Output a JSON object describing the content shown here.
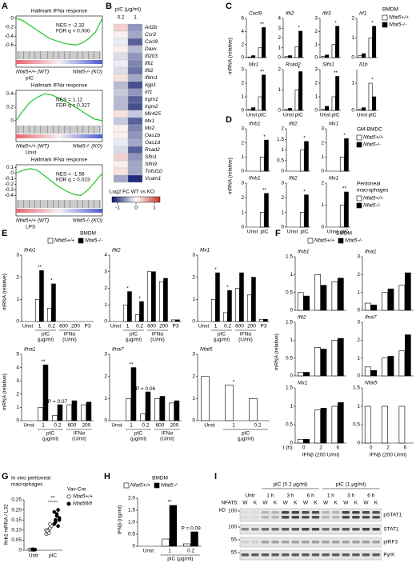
{
  "panel_labels": [
    "A",
    "B",
    "C",
    "D",
    "E",
    "F",
    "G",
    "H",
    "I"
  ],
  "A": {
    "plots": [
      {
        "title": "Hallmark IFNα response",
        "nes": "NES = -2.32",
        "fdr": "FDR q < 0.000",
        "ylim": [
          -0.7,
          0.05
        ],
        "yticks": [
          0,
          -0.2,
          -0.4,
          -0.6
        ],
        "es": [
          0,
          -0.05,
          -0.15,
          -0.25,
          -0.35,
          -0.45,
          -0.5,
          -0.55,
          -0.58,
          -0.6,
          -0.55,
          -0.45,
          -0.3,
          0
        ],
        "left": "Nfat5+/+ (WT)",
        "right": "Nfat5-/- (KO)",
        "condition": "pIC"
      },
      {
        "title": "Hallmark IFNα response",
        "nes": "NES = 1.12",
        "fdr": "FDR q = 0.327",
        "ylim": [
          -0.05,
          0.45
        ],
        "yticks": [
          0,
          0.2,
          0.4
        ],
        "es": [
          0,
          0.15,
          0.28,
          0.35,
          0.4,
          0.38,
          0.33,
          0.28,
          0.22,
          0.15,
          0.08,
          0.02,
          0
        ],
        "left": "Nfat5+/+ (WT)",
        "right": "Nfat5-/- (KO)",
        "condition": "Unst"
      },
      {
        "title": "Hallmark IFNα response",
        "nes": "NES = -1.58",
        "fdr": "FDR q = 0.023",
        "ylim": [
          -0.45,
          0.15
        ],
        "yticks": [
          0.1,
          0,
          -0.1,
          -0.2,
          -0.3,
          -0.4
        ],
        "es": [
          0,
          0.05,
          0.08,
          0.05,
          -0.05,
          -0.15,
          -0.25,
          -0.32,
          -0.38,
          -0.4,
          -0.3,
          -0.15,
          0
        ],
        "left": "Nfat5+/+ (WT)",
        "right": "Nfat5-/- (KO)",
        "condition": "LPS"
      }
    ]
  },
  "B": {
    "header": "pIC (μg/ml)",
    "columns": [
      "0.2",
      "1"
    ],
    "genes": [
      "Art2b",
      "Ccr3",
      "Cxcl9",
      "Daxx",
      "Ifi203",
      "Ifit1",
      "Ifit2",
      "Ifitm1",
      "Iigp1",
      "Irf1",
      "Irgm1",
      "Irgm2",
      "Mir425",
      "Mx1",
      "Mx2",
      "Oas1b",
      "Oas1d",
      "Rsad2",
      "Slfn1",
      "Slfn9",
      "Tnfsf10",
      "Vcam1"
    ],
    "values": [
      [
        0.3,
        -0.6
      ],
      [
        0.1,
        -0.5
      ],
      [
        -0.1,
        -0.9
      ],
      [
        0.1,
        -0.4
      ],
      [
        -0.2,
        -0.6
      ],
      [
        -0.1,
        -0.7
      ],
      [
        -0.2,
        -0.8
      ],
      [
        0.2,
        -0.5
      ],
      [
        -0.4,
        -1
      ],
      [
        -0.3,
        -0.6
      ],
      [
        -0.4,
        -0.9
      ],
      [
        -0.4,
        -1
      ],
      [
        0.2,
        -0.3
      ],
      [
        -0.3,
        -0.9
      ],
      [
        0.1,
        -0.7
      ],
      [
        0.1,
        -0.6
      ],
      [
        -0.1,
        -0.5
      ],
      [
        -0.2,
        -0.9
      ],
      [
        0.3,
        -0.6
      ],
      [
        0.1,
        -0.5
      ],
      [
        0.2,
        -0.5
      ],
      [
        -0.5,
        -1.2
      ]
    ],
    "colorbar_label": "Log2 FC WT vs KO",
    "clim": [
      -1.3,
      1.3
    ],
    "cticks": [
      -1,
      0,
      1
    ]
  },
  "C": {
    "title": "BMDM",
    "legend": [
      "Nfat5+/+",
      "Nfat5-/-"
    ],
    "ylabel": "mRNA (relative)",
    "categories": [
      "Unst",
      "pIC"
    ],
    "charts": [
      {
        "gene": "Cxcl9",
        "ylim": [
          0,
          6
        ],
        "yticks": [
          0,
          2,
          4,
          6
        ],
        "wt": [
          0.1,
          1.5
        ],
        "ko": [
          0.3,
          4.6
        ],
        "sig": [
          null,
          "**"
        ]
      },
      {
        "gene": "Ifit2",
        "ylim": [
          0,
          4
        ],
        "yticks": [
          0,
          1,
          2,
          3,
          4
        ],
        "wt": [
          0.1,
          1.1
        ],
        "ko": [
          0.2,
          2.7
        ],
        "sig": [
          null,
          "*"
        ]
      },
      {
        "gene": "Ifit3",
        "ylim": [
          0,
          3
        ],
        "yticks": [
          0,
          1,
          2,
          3
        ],
        "wt": [
          0.1,
          1
        ],
        "ko": [
          0.2,
          2.4
        ],
        "sig": [
          null,
          "*"
        ]
      },
      {
        "gene": "Irf1",
        "ylim": [
          0,
          2
        ],
        "yticks": [
          0,
          1,
          2
        ],
        "wt": [
          0.1,
          1
        ],
        "ko": [
          0.2,
          1.6
        ],
        "sig": [
          null,
          "*"
        ]
      },
      {
        "gene": "Mx1",
        "ylim": [
          0,
          3
        ],
        "yticks": [
          0,
          1,
          2,
          3
        ],
        "wt": [
          0.1,
          1
        ],
        "ko": [
          0.2,
          2.6
        ],
        "sig": [
          null,
          "**"
        ]
      },
      {
        "gene": "Rsad2",
        "ylim": [
          0,
          2
        ],
        "yticks": [
          0,
          1,
          2
        ],
        "wt": [
          0.05,
          1
        ],
        "ko": [
          0.1,
          1.9
        ],
        "sig": [
          null,
          "*"
        ]
      },
      {
        "gene": "Slfn1",
        "ylim": [
          0,
          3
        ],
        "yticks": [
          0,
          1,
          2,
          3
        ],
        "wt": [
          0.1,
          1
        ],
        "ko": [
          0.3,
          2.5
        ],
        "sig": [
          null,
          "**"
        ]
      },
      {
        "gene": "Il1b",
        "ylim": [
          0,
          1.5
        ],
        "yticks": [
          0,
          1
        ],
        "wt": [
          0.05,
          1
        ],
        "ko": [
          0.1,
          0.5
        ],
        "sig": [
          null,
          "*"
        ]
      }
    ]
  },
  "D": {
    "ylabel": "mRNA (relative)",
    "categories": [
      "Unst",
      "pIC"
    ],
    "groups": [
      {
        "title": [
          "GM-BMDC"
        ],
        "legend": [
          "Nfat5+/+",
          "Nfat5-/-"
        ],
        "charts": [
          {
            "gene": "Ifnb1",
            "ylim": [
              0,
              3
            ],
            "yticks": [
              0,
              1,
              2,
              3
            ],
            "wt": [
              0,
              1
            ],
            "ko": [
              0,
              2.2
            ],
            "sig": [
              null,
              "*"
            ]
          },
          {
            "gene": "Ifit2",
            "ylim": [
              0,
              2
            ],
            "yticks": [
              0,
              0.5,
              1,
              1.5,
              2
            ],
            "wt": [
              0,
              1
            ],
            "ko": [
              0,
              1.4
            ],
            "sig": [
              null,
              "*"
            ]
          },
          {
            "gene": "Mx1",
            "ylim": [
              0,
              3
            ],
            "yticks": [
              0,
              1,
              2,
              3
            ],
            "wt": [
              0,
              1
            ],
            "ko": [
              0,
              2.3
            ],
            "sig": [
              null,
              "*"
            ]
          }
        ]
      },
      {
        "title": [
          "Peritoneal",
          "macrophages"
        ],
        "legend": [
          "Nfat5+/+",
          "Nfat5-/-"
        ],
        "charts": [
          {
            "gene": "Ifnb1",
            "ylim": [
              0,
              3
            ],
            "yticks": [
              0,
              1,
              2,
              3
            ],
            "wt": [
              0,
              1
            ],
            "ko": [
              0,
              2.3
            ],
            "sig": [
              null,
              "**"
            ]
          },
          {
            "gene": "Ifit2",
            "ylim": [
              0,
              3
            ],
            "yticks": [
              0,
              1,
              2,
              3
            ],
            "wt": [
              0,
              1
            ],
            "ko": [
              0,
              2.2
            ],
            "sig": [
              null,
              "*"
            ]
          },
          {
            "gene": "Mx1",
            "ylim": [
              0,
              2
            ],
            "yticks": [
              0,
              1,
              2
            ],
            "wt": [
              0,
              1
            ],
            "ko": [
              0,
              1.6
            ],
            "sig": [
              null,
              "**"
            ]
          }
        ]
      }
    ]
  },
  "E": {
    "title": "BMDM",
    "legend": [
      "Nfat5+/+",
      "Nfat5-/-"
    ],
    "ylabel": "mRNA (relative)",
    "categories": [
      "Unst",
      "1",
      "0.2",
      "600",
      "200",
      "P3"
    ],
    "groups": [
      [
        "pIC",
        "(μg/ml)"
      ],
      [
        "IFNα",
        "(U/ml)"
      ]
    ],
    "charts": [
      {
        "gene": "Ifnb1",
        "ylim": [
          0,
          3
        ],
        "yticks": [
          0,
          1,
          2,
          3
        ],
        "wt": [
          0,
          1,
          0.6,
          0,
          0,
          0
        ],
        "ko": [
          0,
          2.3,
          1.7,
          0,
          0,
          0
        ],
        "sig": [
          null,
          "**",
          "*"
        ]
      },
      {
        "gene": "Ifit2",
        "ylim": [
          0,
          4
        ],
        "yticks": [
          0,
          1,
          2,
          3,
          4
        ],
        "wt": [
          0,
          1,
          0.4,
          3,
          2.4,
          0.1
        ],
        "ko": [
          0,
          1.8,
          1.2,
          3,
          2.6,
          0.1
        ],
        "sig": [
          null,
          "*",
          "*"
        ]
      },
      {
        "gene": "Mx1",
        "ylim": [
          0,
          3
        ],
        "yticks": [
          0,
          1,
          2,
          3
        ],
        "wt": [
          0,
          1,
          0.4,
          1.5,
          1.2,
          0.1
        ],
        "ko": [
          0,
          2.2,
          1.4,
          2.2,
          2,
          0.1
        ],
        "sig": [
          null,
          "*",
          "*"
        ]
      },
      {
        "gene": "Ifna1",
        "ylim": [
          0,
          5
        ],
        "yticks": [
          0,
          1,
          2,
          3,
          4,
          5
        ],
        "wt": [
          0,
          1,
          0.4,
          1.2,
          1.2
        ],
        "ko": [
          0,
          4.2,
          1.2,
          1.5,
          1.4
        ],
        "sig": [
          null,
          "**",
          "P = 0.07"
        ]
      },
      {
        "gene": "Ifna7",
        "ylim": [
          0,
          3
        ],
        "yticks": [
          0,
          1,
          2,
          3
        ],
        "wt": [
          0,
          1,
          0.3,
          1,
          0.8
        ],
        "ko": [
          0,
          2.4,
          1.3,
          1.1,
          0.9
        ],
        "sig": [
          null,
          "**",
          "P = 0.06"
        ]
      },
      {
        "gene": "Nfat5",
        "ylim": [
          0,
          3
        ],
        "yticks": [
          0,
          1,
          2,
          3
        ],
        "wt": [
          2,
          1.6,
          1
        ],
        "ko": [
          0,
          0,
          0
        ],
        "sig": [
          null,
          "*"
        ]
      }
    ]
  },
  "F": {
    "title": "BMDM",
    "legend": [
      "Nfat5+/+",
      "Nfat5-/-"
    ],
    "ylabel": "mRNA (relative)",
    "categories": [
      "0",
      "2",
      "6"
    ],
    "x_prefix": "t (h):",
    "treatment": "IFNβ (200 U/ml)",
    "charts": [
      {
        "gene": "Ifnb1",
        "ylim": [
          0,
          1.5
        ],
        "yticks": [
          0,
          0.5,
          1,
          1.5
        ],
        "wt": [
          0.5,
          1,
          0.8
        ],
        "ko": [
          0.4,
          0.7,
          0.9
        ]
      },
      {
        "gene": "Ifna1",
        "ylim": [
          0,
          3
        ],
        "yticks": [
          0,
          1,
          2,
          3
        ],
        "wt": [
          0.4,
          1,
          1.4
        ],
        "ko": [
          0.3,
          1.2,
          2.1
        ]
      },
      {
        "gene": "Ifit2",
        "ylim": [
          0,
          1.5
        ],
        "yticks": [
          0,
          0.5,
          1,
          1.5
        ],
        "wt": [
          0.1,
          0.8,
          1
        ],
        "ko": [
          0.1,
          0.75,
          1.05
        ]
      },
      {
        "gene": "Ifna7",
        "ylim": [
          0,
          3
        ],
        "yticks": [
          0,
          1,
          2,
          3
        ],
        "wt": [
          0.5,
          1,
          1.4
        ],
        "ko": [
          0.3,
          1.1,
          2.3
        ]
      },
      {
        "gene": "Mx1",
        "ylim": [
          0,
          1.5
        ],
        "yticks": [
          0,
          0.5,
          1,
          1.5
        ],
        "wt": [
          0.1,
          0.9,
          1
        ],
        "ko": [
          0.1,
          0.95,
          1.1
        ]
      },
      {
        "gene": "Nfat5",
        "ylim": [
          0,
          1.5
        ],
        "yticks": [
          0,
          0.5,
          1,
          1.5
        ],
        "wt": [
          1,
          1,
          1
        ],
        "ko": [
          0,
          0,
          0
        ]
      }
    ]
  },
  "G": {
    "title": [
      "In vivo peritoneal",
      "macrophages"
    ],
    "ylabel": "Ifnb1 mRNA / L32",
    "categories": [
      "Untr",
      "pIC"
    ],
    "legend_title": "Vav-Cre",
    "legend": [
      "Nfat5+/+",
      "Nfat5fl/fl"
    ],
    "sig": "**",
    "ylim": [
      0,
      0.25
    ],
    "yticks": [
      0,
      0.05,
      {
        "value": 0.1,
        "label": "0.10"
      },
      0.15,
      {
        "value": 0.2,
        "label": "0.20"
      },
      0.25
    ],
    "wt": [
      [
        0.003,
        0.004,
        0.002,
        0.005,
        0.003
      ],
      [
        0.08,
        0.09,
        0.1,
        0.11,
        0.12,
        0.1,
        0.095,
        0.085,
        0.13
      ]
    ],
    "ko": [
      [
        0.004,
        0.002,
        0.003
      ],
      [
        0.13,
        0.15,
        0.17,
        0.12,
        0.16,
        0.19,
        0.14,
        0.18,
        0.2,
        0.15
      ]
    ]
  },
  "H": {
    "title": "BMDM",
    "legend": [
      "Nfat5+/+",
      "Nfat5-/-"
    ],
    "ylabel": "IFNβ (ng/ml)",
    "categories": [
      "Unst",
      "1",
      "0.2"
    ],
    "group": "pIC (μg/ml)",
    "chart": {
      "ylim": [
        0,
        2
      ],
      "yticks": [
        0,
        0.5,
        {
          "value": 1,
          "label": "1.0"
        },
        1.5,
        {
          "value": 2,
          "label": "2.0"
        }
      ],
      "wt": [
        0,
        0.3,
        0.1
      ],
      "ko": [
        0,
        1.7,
        0.6
      ],
      "sig": [
        null,
        "**",
        "P = 0.09"
      ]
    }
  },
  "I": {
    "groups": [
      "Untr",
      "pIC (0.2 μg/ml)",
      "pIC (1 μg/ml)"
    ],
    "times": [
      "1 h",
      "3 h",
      "6 h"
    ],
    "genotype_label": "NFAT5:",
    "genotypes": [
      "W",
      "K"
    ],
    "kd_label": "kD",
    "rows": [
      {
        "kd": 100,
        "name": "pSTAT1"
      },
      {
        "kd": 100,
        "name": "STAT1"
      },
      {
        "kd": 55,
        "name": "pIRF3"
      },
      {
        "kd": 55,
        "name": "PyrK"
      }
    ]
  }
}
